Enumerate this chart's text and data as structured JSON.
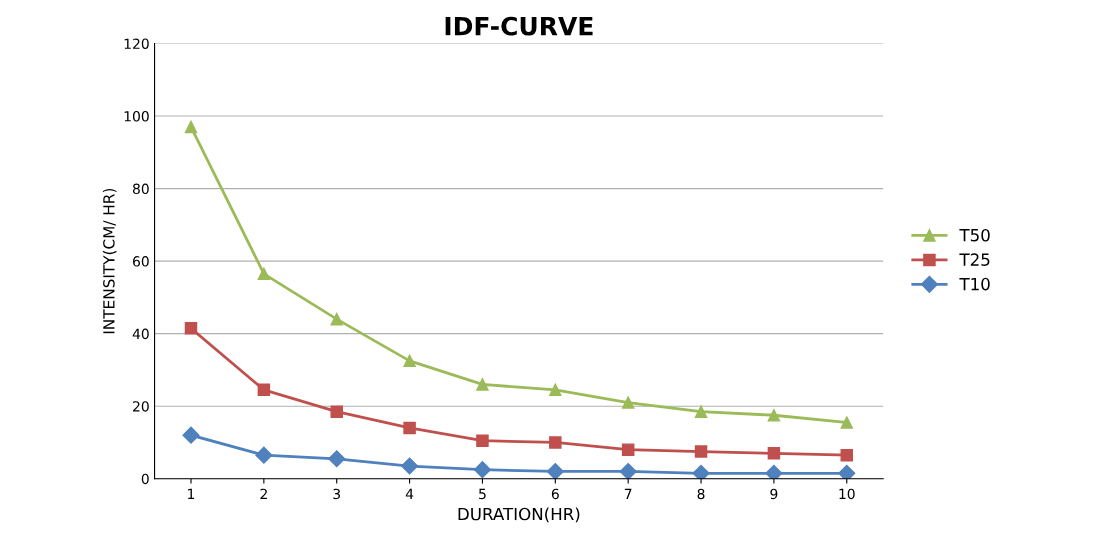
{
  "chart_data": {
    "type": "line",
    "title": "IDF-CURVE",
    "xlabel": "DURATION(HR)",
    "ylabel": "INTENSITY(CM/ HR)",
    "categories": [
      "1",
      "2",
      "3",
      "4",
      "5",
      "6",
      "7",
      "8",
      "9",
      "10"
    ],
    "series": [
      {
        "name": "T50",
        "color": "#9bbb59",
        "marker": "triangle",
        "values": [
          97,
          56.5,
          44,
          32.5,
          26,
          24.5,
          21,
          18.5,
          17.5,
          15.5
        ]
      },
      {
        "name": "T25",
        "color": "#c0504d",
        "marker": "square",
        "values": [
          41.5,
          24.5,
          18.5,
          14,
          10.5,
          10,
          8,
          7.5,
          7,
          6.5
        ]
      },
      {
        "name": "T10",
        "color": "#4f81bd",
        "marker": "diamond",
        "values": [
          12,
          6.5,
          5.5,
          3.5,
          2.5,
          2,
          2,
          1.5,
          1.5,
          1.5
        ]
      }
    ],
    "ylim": [
      0,
      120
    ],
    "yticks": [
      0,
      20,
      40,
      60,
      80,
      100,
      120
    ],
    "grid": "y",
    "legend": "right"
  }
}
